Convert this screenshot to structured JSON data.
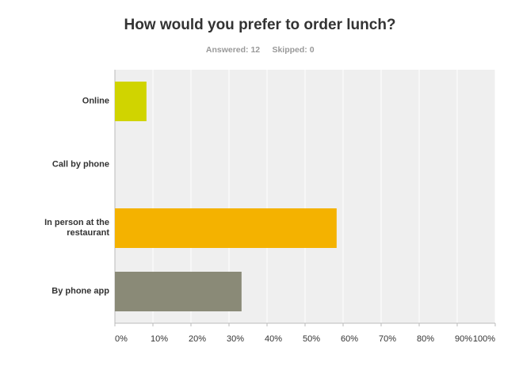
{
  "chart_data": {
    "type": "bar",
    "orientation": "horizontal",
    "title": "How would you prefer to order lunch?",
    "answered": "Answered: 12",
    "skipped": "Skipped: 0",
    "categories": [
      "Online",
      "Call by phone",
      "In person at the restaurant",
      "By phone app"
    ],
    "values": [
      8.3,
      0,
      58.3,
      33.3
    ],
    "colors": [
      "#d0d400",
      "#5fa8c9",
      "#f4b200",
      "#8a8a77"
    ],
    "xlim": [
      0,
      100
    ],
    "xticks": [
      {
        "value": 0,
        "label": "0%"
      },
      {
        "value": 10,
        "label": "10%"
      },
      {
        "value": 20,
        "label": "20%"
      },
      {
        "value": 30,
        "label": "30%"
      },
      {
        "value": 40,
        "label": "40%"
      },
      {
        "value": 50,
        "label": "50%"
      },
      {
        "value": 60,
        "label": "60%"
      },
      {
        "value": 70,
        "label": "70%"
      },
      {
        "value": 80,
        "label": "80%"
      },
      {
        "value": 90,
        "label": "90%"
      },
      {
        "value": 100,
        "label": "100%"
      }
    ],
    "grid": true
  }
}
